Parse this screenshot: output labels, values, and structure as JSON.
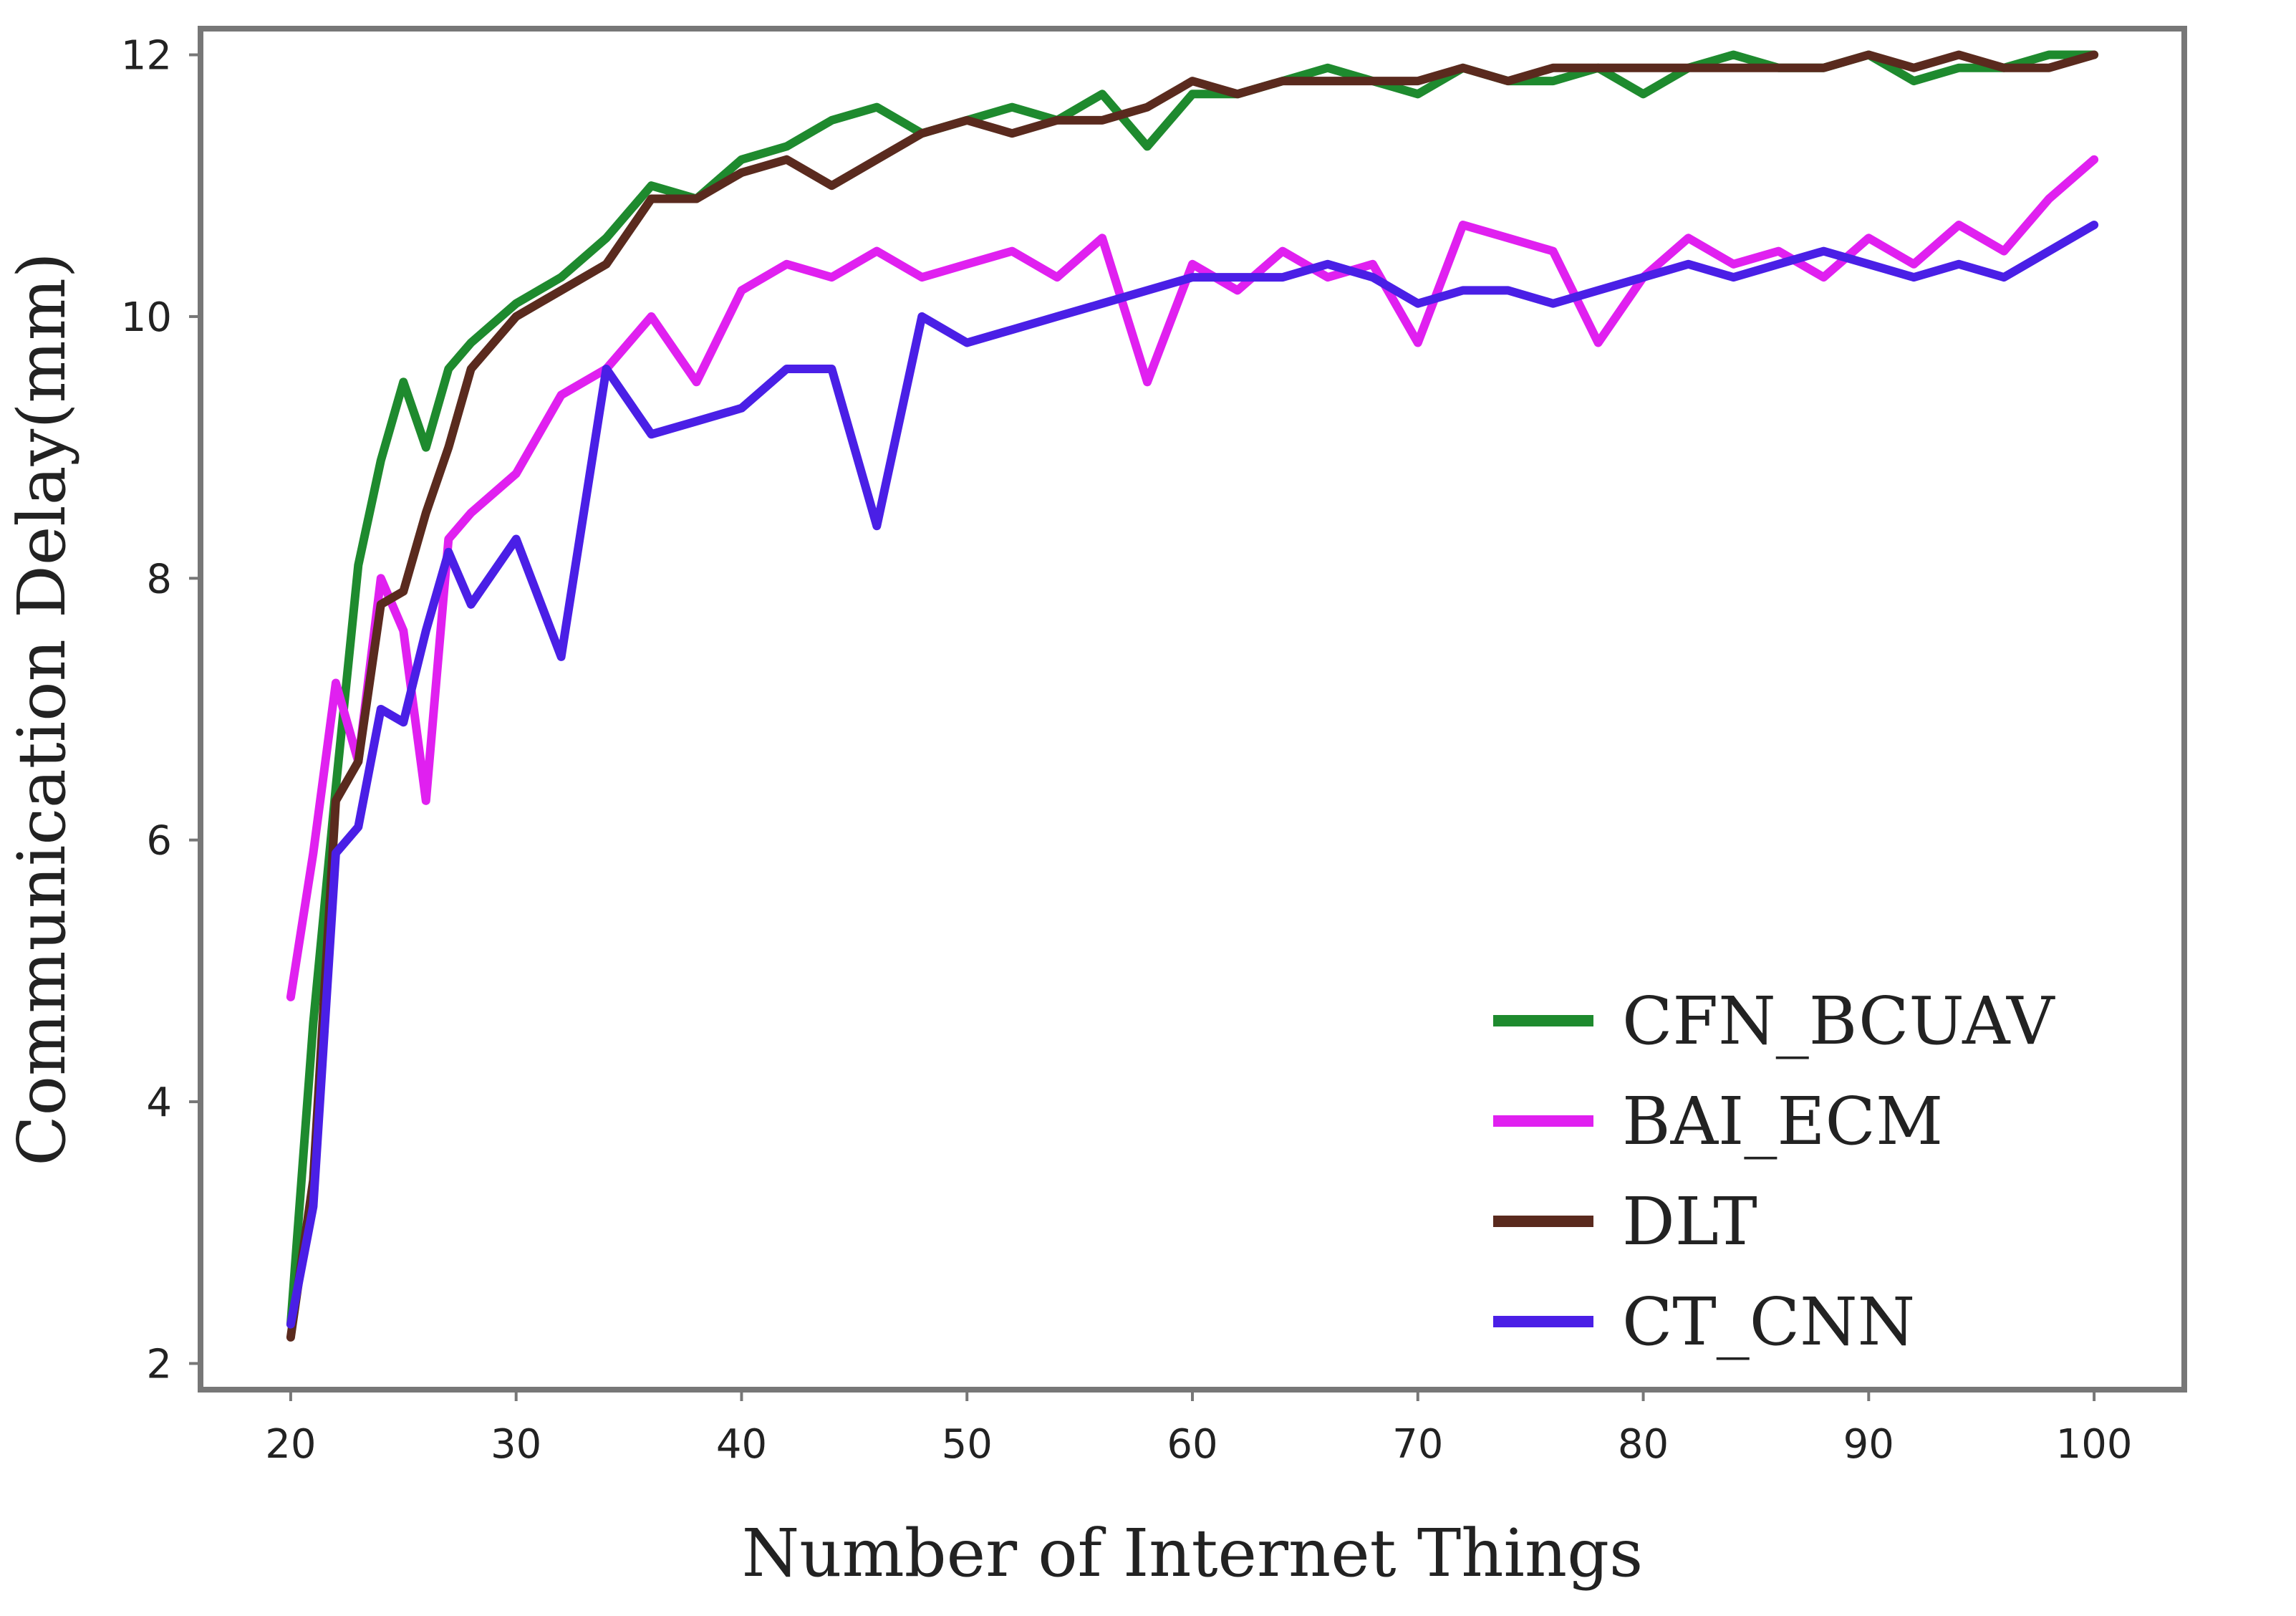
{
  "chart_data": {
    "type": "line",
    "xlabel": "Number of Internet Things",
    "ylabel": "Communication Delay(mm)",
    "xlim": [
      16,
      104
    ],
    "ylim": [
      1.8,
      12.2
    ],
    "xticks": [
      20,
      30,
      40,
      50,
      60,
      70,
      80,
      90,
      100
    ],
    "yticks": [
      2,
      4,
      6,
      8,
      10,
      12
    ],
    "grid": false,
    "legend_position": "bottom-right",
    "x": [
      20,
      21,
      22,
      23,
      24,
      25,
      26,
      27,
      28,
      30,
      32,
      34,
      36,
      38,
      40,
      42,
      44,
      46,
      48,
      50,
      52,
      54,
      56,
      58,
      60,
      62,
      64,
      66,
      68,
      70,
      72,
      74,
      76,
      78,
      80,
      82,
      84,
      86,
      88,
      90,
      92,
      94,
      96,
      98,
      100
    ],
    "series": [
      {
        "name": "CFN_BCUAV",
        "color": "#1e8a2e",
        "values": [
          2.3,
          4.6,
          6.4,
          8.1,
          8.9,
          9.5,
          9.0,
          9.6,
          9.8,
          10.1,
          10.3,
          10.6,
          11.0,
          10.9,
          11.2,
          11.3,
          11.5,
          11.6,
          11.4,
          11.5,
          11.6,
          11.5,
          11.7,
          11.3,
          11.7,
          11.7,
          11.8,
          11.9,
          11.8,
          11.7,
          11.9,
          11.8,
          11.8,
          11.9,
          11.7,
          11.9,
          12.0,
          11.9,
          11.9,
          12.0,
          11.8,
          11.9,
          11.9,
          12.0,
          12.0
        ]
      },
      {
        "name": "BAI_ECM",
        "color": "#e020f0",
        "values": [
          4.8,
          5.9,
          7.2,
          6.6,
          8.0,
          7.6,
          6.3,
          8.3,
          8.5,
          8.8,
          9.4,
          9.6,
          10.0,
          9.5,
          10.2,
          10.4,
          10.3,
          10.5,
          10.3,
          10.4,
          10.5,
          10.3,
          10.6,
          9.5,
          10.4,
          10.2,
          10.5,
          10.3,
          10.4,
          9.8,
          10.7,
          10.6,
          10.5,
          9.8,
          10.3,
          10.6,
          10.4,
          10.5,
          10.3,
          10.6,
          10.4,
          10.7,
          10.5,
          10.9,
          11.2
        ]
      },
      {
        "name": "DLT",
        "color": "#5a2a1e",
        "values": [
          2.2,
          3.4,
          6.3,
          6.6,
          7.8,
          7.9,
          8.5,
          9.0,
          9.6,
          10.0,
          10.2,
          10.4,
          10.9,
          10.9,
          11.1,
          11.2,
          11.0,
          11.2,
          11.4,
          11.5,
          11.4,
          11.5,
          11.5,
          11.6,
          11.8,
          11.7,
          11.8,
          11.8,
          11.8,
          11.8,
          11.9,
          11.8,
          11.9,
          11.9,
          11.9,
          11.9,
          11.9,
          11.9,
          11.9,
          12.0,
          11.9,
          12.0,
          11.9,
          11.9,
          12.0
        ]
      },
      {
        "name": "CT_CNN",
        "color": "#4a1fe6",
        "values": [
          2.3,
          3.2,
          5.9,
          6.1,
          7.0,
          6.9,
          7.6,
          8.2,
          7.8,
          8.3,
          7.4,
          9.6,
          9.1,
          9.2,
          9.3,
          9.6,
          9.6,
          8.4,
          10.0,
          9.8,
          9.9,
          10.0,
          10.1,
          10.2,
          10.3,
          10.3,
          10.3,
          10.4,
          10.3,
          10.1,
          10.2,
          10.2,
          10.1,
          10.2,
          10.3,
          10.4,
          10.3,
          10.4,
          10.5,
          10.4,
          10.3,
          10.4,
          10.3,
          10.5,
          10.7
        ]
      }
    ]
  }
}
